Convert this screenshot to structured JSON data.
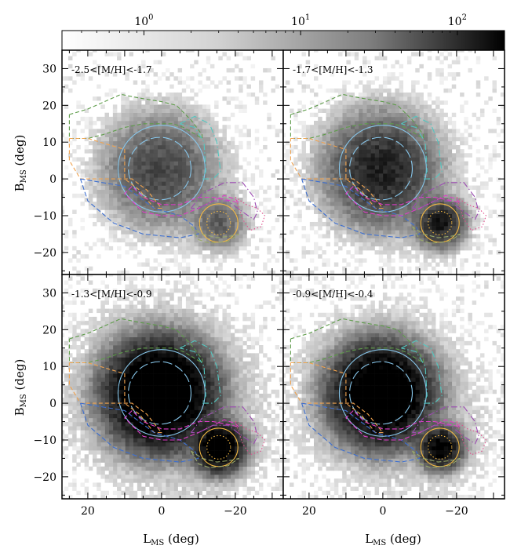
{
  "chart_data": {
    "type": "heatmap",
    "colorbar": {
      "scale": "log",
      "range": [
        0.3,
        200
      ],
      "tick_values": [
        1,
        10,
        100
      ],
      "tick_labels": [
        {
          "base": "10",
          "exp": "0"
        },
        {
          "base": "10",
          "exp": "1"
        },
        {
          "base": "10",
          "exp": "2"
        }
      ],
      "colormap": "Greys"
    },
    "x_axis": {
      "label_main": "L",
      "label_sub": "MS",
      "label_unit": " (deg)",
      "range": [
        27,
        -33
      ],
      "ticks": [
        20,
        0,
        -20
      ],
      "tick_labels": [
        "20",
        "0",
        "−20"
      ]
    },
    "y_axis": {
      "label_main": "B",
      "label_sub": "MS",
      "label_unit": " (deg)",
      "range": [
        -26,
        35
      ],
      "ticks": [
        30,
        20,
        10,
        0,
        -10,
        -20
      ],
      "tick_labels": [
        "30",
        "20",
        "10",
        "0",
        "−10",
        "−20"
      ]
    },
    "panels": [
      {
        "label": "-2.5<[M/H]<-1.7",
        "lmc_peak": 30,
        "smc_peak": 18,
        "lmc_sigma": 6.5,
        "smc_sigma": 3.2,
        "halo_level": 0.35
      },
      {
        "label": "-1.7<[M/H]<-1.3",
        "lmc_peak": 90,
        "smc_peak": 120,
        "lmc_sigma": 6.2,
        "smc_sigma": 2.8,
        "halo_level": 0.45
      },
      {
        "label": "-1.3<[M/H]<-0.9",
        "lmc_peak": 900,
        "smc_peak": 500,
        "lmc_sigma": 5.8,
        "smc_sigma": 2.8,
        "halo_level": 0.9
      },
      {
        "label": "-0.9<[M/H]<-0.4",
        "lmc_peak": 700,
        "smc_peak": 250,
        "lmc_sigma": 5.5,
        "smc_sigma": 2.5,
        "halo_level": 0.7
      }
    ],
    "centers": {
      "lmc": {
        "l": 0.5,
        "b": 2.5
      },
      "smc": {
        "l": -15.5,
        "b": -12
      }
    },
    "regions": [
      {
        "name": "lmc-inner",
        "kind": "circle",
        "l": 0.5,
        "b": 2.8,
        "r": 8.5,
        "color": "#87c6ea",
        "dash": "12,4"
      },
      {
        "name": "lmc-outer",
        "kind": "circle",
        "l": 0,
        "b": 2.8,
        "r": 11.8,
        "color": "#87c6ea",
        "dash": "none"
      },
      {
        "name": "smc-outer",
        "kind": "circle",
        "l": -15.5,
        "b": -12,
        "r": 5.2,
        "color": "#f4b942",
        "dash": "none"
      },
      {
        "name": "smc-inner",
        "kind": "circle",
        "l": -15.5,
        "b": -12,
        "r": 3.2,
        "color": "#f4b942",
        "dash": "1.5,2.5"
      },
      {
        "name": "north-green",
        "kind": "poly",
        "color": "#5e9c4a",
        "dash": "5,3",
        "pts": [
          [
            25,
            17.5
          ],
          [
            20,
            19
          ],
          [
            11,
            23
          ],
          [
            6,
            22
          ],
          [
            0,
            21
          ],
          [
            -4,
            20
          ],
          [
            -8,
            16
          ],
          [
            -11,
            12
          ],
          [
            -11,
            11
          ],
          [
            -6,
            14
          ],
          [
            -3,
            15
          ],
          [
            0,
            15
          ],
          [
            5,
            15
          ],
          [
            10,
            14
          ],
          [
            16,
            12
          ],
          [
            20,
            11
          ],
          [
            25,
            11
          ],
          [
            25,
            17.5
          ]
        ]
      },
      {
        "name": "east-cyan",
        "kind": "poly",
        "color": "#52c7c0",
        "dash": "8,3,1.5,3",
        "pts": [
          [
            -5,
            15
          ],
          [
            -9,
            17
          ],
          [
            -13,
            15
          ],
          [
            -15,
            10
          ],
          [
            -16,
            2
          ],
          [
            -14,
            0
          ],
          [
            -11,
            0
          ],
          [
            -12,
            2
          ],
          [
            -11.5,
            10
          ],
          [
            -9,
            14
          ],
          [
            -5,
            15
          ]
        ]
      },
      {
        "name": "west-orange",
        "kind": "poly",
        "color": "#f0a24e",
        "dash": "5,3",
        "pts": [
          [
            25,
            11
          ],
          [
            20,
            11
          ],
          [
            10,
            8
          ],
          [
            10,
            0
          ],
          [
            6,
            -3
          ],
          [
            2,
            -8
          ],
          [
            0,
            -8
          ],
          [
            4,
            -3
          ],
          [
            8,
            0
          ],
          [
            15,
            0
          ],
          [
            22,
            0
          ],
          [
            25,
            5
          ],
          [
            25,
            11
          ]
        ]
      },
      {
        "name": "south-blue",
        "kind": "poly",
        "color": "#3d6fd0",
        "dash": "6,3",
        "pts": [
          [
            22,
            0
          ],
          [
            10,
            -2
          ],
          [
            2,
            -8
          ],
          [
            -5,
            -10
          ],
          [
            -9,
            -13
          ],
          [
            -10,
            -15
          ],
          [
            -5,
            -16
          ],
          [
            5,
            -15
          ],
          [
            13,
            -12
          ],
          [
            20,
            -6
          ],
          [
            22,
            0
          ]
        ]
      },
      {
        "name": "bridge-pink",
        "kind": "poly",
        "color": "#e03cc9",
        "dash": "6,3",
        "pts": [
          [
            8,
            -2
          ],
          [
            10,
            -4
          ],
          [
            5,
            -9
          ],
          [
            0,
            -10
          ],
          [
            -5,
            -10
          ],
          [
            -10,
            -8
          ],
          [
            -12,
            -7
          ],
          [
            -17,
            -4.5
          ],
          [
            -20,
            -5.5
          ],
          [
            -21,
            -6.5
          ],
          [
            -19,
            -6
          ],
          [
            -14,
            -5
          ],
          [
            -10,
            -5
          ],
          [
            -5,
            -7
          ],
          [
            0,
            -7
          ],
          [
            5,
            -5
          ],
          [
            8,
            -2
          ]
        ]
      },
      {
        "name": "smc-east-purple",
        "kind": "poly",
        "color": "#9c4bb2",
        "dash": "8,3,1.5,3",
        "pts": [
          [
            -8,
            -8
          ],
          [
            -11,
            -4
          ],
          [
            -17,
            -1
          ],
          [
            -22,
            -1
          ],
          [
            -25,
            -5
          ],
          [
            -26,
            -9
          ],
          [
            -25,
            -11
          ],
          [
            -22,
            -9
          ],
          [
            -18,
            -6
          ],
          [
            -14,
            -6
          ],
          [
            -10,
            -8
          ],
          [
            -8,
            -8
          ]
        ]
      },
      {
        "name": "smc-tail-magenta",
        "kind": "poly",
        "color": "#e0508d",
        "dash": "1.5,2.5",
        "pts": [
          [
            -20,
            -5
          ],
          [
            -23,
            -7
          ],
          [
            -26,
            -8
          ],
          [
            -28,
            -10
          ],
          [
            -27,
            -13
          ],
          [
            -24,
            -14
          ],
          [
            -22,
            -11
          ],
          [
            -20,
            -5
          ]
        ]
      },
      {
        "name": "smc-south-olive",
        "kind": "poly",
        "color": "#9aaa6a",
        "dash": "6,3",
        "pts": [
          [
            -8,
            -13
          ],
          [
            -10,
            -16.5
          ],
          [
            -13,
            -17.5
          ],
          [
            -18,
            -17
          ],
          [
            -21,
            -15
          ],
          [
            -19,
            -15.5
          ],
          [
            -15,
            -16
          ],
          [
            -11,
            -15
          ],
          [
            -8,
            -13
          ]
        ]
      }
    ]
  }
}
